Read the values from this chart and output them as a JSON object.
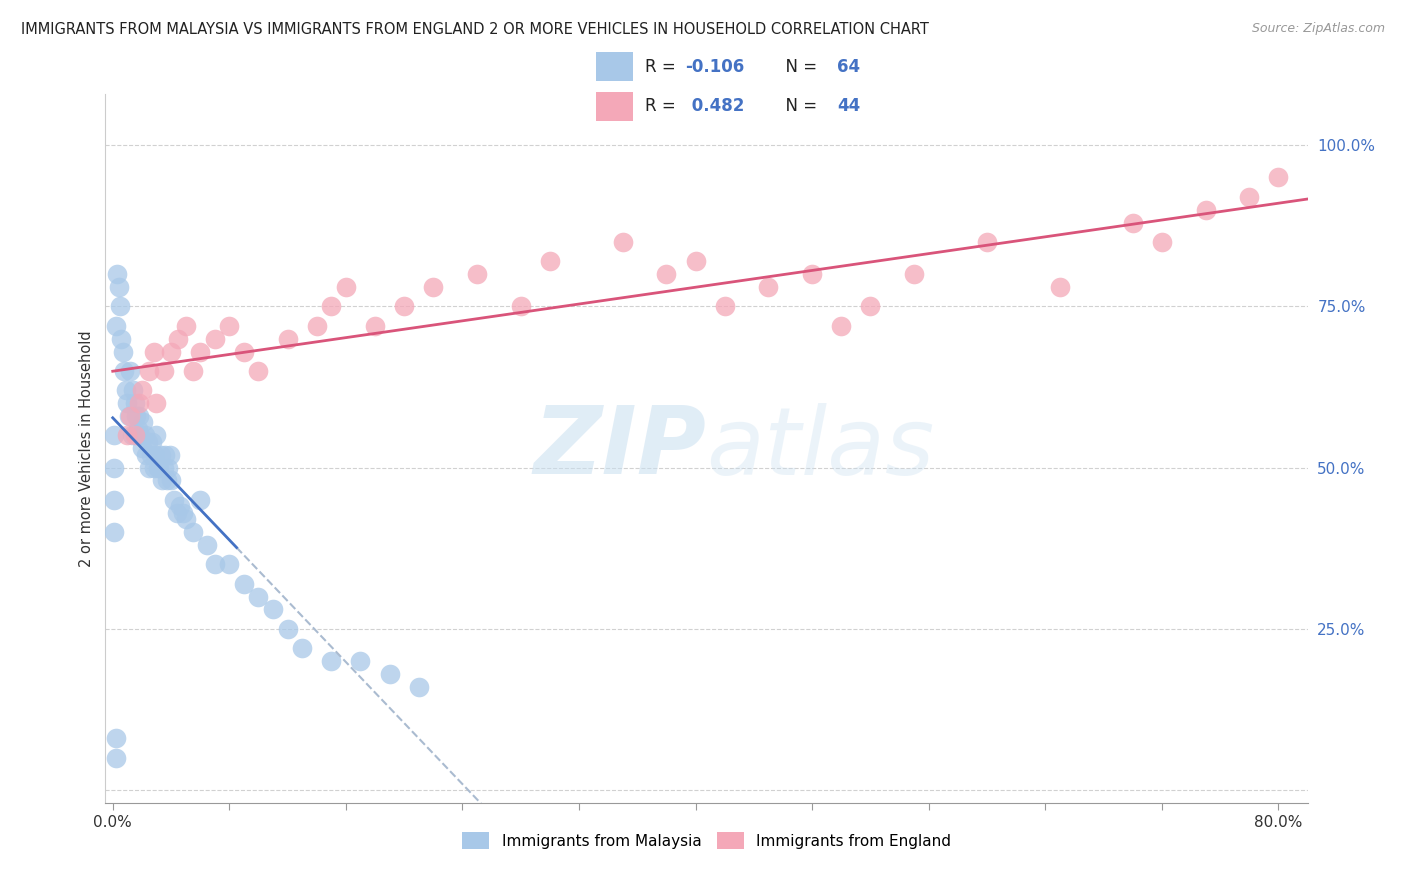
{
  "title": "IMMIGRANTS FROM MALAYSIA VS IMMIGRANTS FROM ENGLAND 2 OR MORE VEHICLES IN HOUSEHOLD CORRELATION CHART",
  "source": "Source: ZipAtlas.com",
  "ylabel": "2 or more Vehicles in Household",
  "legend1_label": "Immigrants from Malaysia",
  "legend2_label": "Immigrants from England",
  "R1": -0.106,
  "N1": 64,
  "R2": 0.482,
  "N2": 44,
  "color1": "#a8c8e8",
  "color2": "#f4a8b8",
  "line_color1": "#4472c4",
  "line_color2": "#d9547a",
  "dash_color": "#aabbd0",
  "watermark_zip": "ZIP",
  "watermark_atlas": "atlas",
  "background_color": "#ffffff",
  "grid_color": "#cccccc",
  "malaysia_x": [
    0.002,
    0.003,
    0.004,
    0.005,
    0.006,
    0.007,
    0.008,
    0.009,
    0.01,
    0.011,
    0.012,
    0.013,
    0.014,
    0.015,
    0.016,
    0.017,
    0.018,
    0.019,
    0.02,
    0.021,
    0.022,
    0.023,
    0.024,
    0.025,
    0.026,
    0.027,
    0.028,
    0.029,
    0.03,
    0.031,
    0.032,
    0.033,
    0.034,
    0.035,
    0.036,
    0.037,
    0.038,
    0.039,
    0.04,
    0.042,
    0.044,
    0.046,
    0.048,
    0.05,
    0.055,
    0.06,
    0.065,
    0.07,
    0.08,
    0.09,
    0.1,
    0.11,
    0.12,
    0.13,
    0.15,
    0.17,
    0.19,
    0.21,
    0.001,
    0.001,
    0.001,
    0.001,
    0.002,
    0.002
  ],
  "malaysia_y": [
    0.72,
    0.8,
    0.78,
    0.75,
    0.7,
    0.68,
    0.65,
    0.62,
    0.6,
    0.58,
    0.65,
    0.55,
    0.62,
    0.6,
    0.58,
    0.56,
    0.58,
    0.55,
    0.53,
    0.57,
    0.55,
    0.52,
    0.54,
    0.5,
    0.52,
    0.54,
    0.5,
    0.52,
    0.55,
    0.5,
    0.5,
    0.52,
    0.48,
    0.5,
    0.52,
    0.48,
    0.5,
    0.52,
    0.48,
    0.45,
    0.43,
    0.44,
    0.43,
    0.42,
    0.4,
    0.45,
    0.38,
    0.35,
    0.35,
    0.32,
    0.3,
    0.28,
    0.25,
    0.22,
    0.2,
    0.2,
    0.18,
    0.16,
    0.55,
    0.5,
    0.45,
    0.4,
    0.05,
    0.08
  ],
  "england_x": [
    0.01,
    0.012,
    0.015,
    0.018,
    0.02,
    0.025,
    0.028,
    0.03,
    0.035,
    0.04,
    0.045,
    0.05,
    0.055,
    0.06,
    0.07,
    0.08,
    0.09,
    0.1,
    0.12,
    0.14,
    0.15,
    0.16,
    0.18,
    0.2,
    0.22,
    0.25,
    0.28,
    0.3,
    0.35,
    0.38,
    0.4,
    0.42,
    0.45,
    0.48,
    0.5,
    0.52,
    0.55,
    0.6,
    0.65,
    0.7,
    0.72,
    0.75,
    0.78,
    0.8
  ],
  "england_y": [
    0.55,
    0.58,
    0.55,
    0.6,
    0.62,
    0.65,
    0.68,
    0.6,
    0.65,
    0.68,
    0.7,
    0.72,
    0.65,
    0.68,
    0.7,
    0.72,
    0.68,
    0.65,
    0.7,
    0.72,
    0.75,
    0.78,
    0.72,
    0.75,
    0.78,
    0.8,
    0.75,
    0.82,
    0.85,
    0.8,
    0.82,
    0.75,
    0.78,
    0.8,
    0.72,
    0.75,
    0.8,
    0.85,
    0.78,
    0.88,
    0.85,
    0.9,
    0.92,
    0.95
  ],
  "xlim": [
    -0.005,
    0.82
  ],
  "ylim": [
    -0.02,
    1.08
  ],
  "yticks": [
    0.0,
    0.25,
    0.5,
    0.75,
    1.0
  ],
  "ytick_labels": [
    "",
    "25.0%",
    "50.0%",
    "75.0%",
    "100.0%"
  ]
}
